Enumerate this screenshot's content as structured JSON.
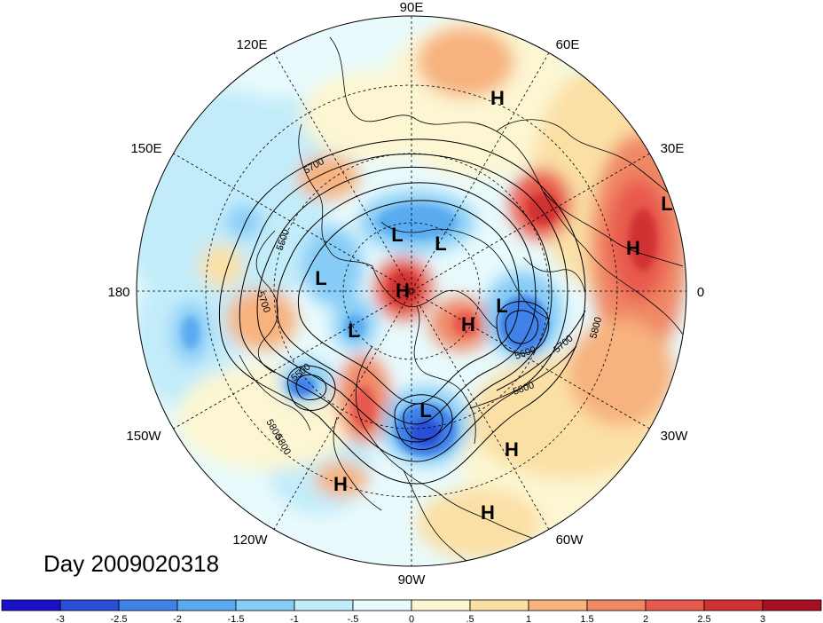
{
  "map": {
    "projection": "polar-stereographic",
    "hemisphere": "north",
    "longitude_labels": [
      "90E",
      "60E",
      "30E",
      "0",
      "30W",
      "60W",
      "90W",
      "120W",
      "150W",
      "180",
      "150E",
      "120E"
    ],
    "contour_labels": [
      "5500",
      "5500",
      "5600",
      "5700",
      "5700",
      "5700",
      "5800",
      "5800",
      "5800",
      "5800"
    ],
    "highs_lows": [
      {
        "type": "H",
        "label": "H"
      },
      {
        "type": "H",
        "label": "H"
      },
      {
        "type": "H",
        "label": "H"
      },
      {
        "type": "H",
        "label": "H"
      },
      {
        "type": "H",
        "label": "H"
      },
      {
        "type": "H",
        "label": "H"
      },
      {
        "type": "H",
        "label": "H"
      },
      {
        "type": "L",
        "label": "L"
      },
      {
        "type": "L",
        "label": "L"
      },
      {
        "type": "L",
        "label": "L"
      },
      {
        "type": "L",
        "label": "L"
      },
      {
        "type": "L",
        "label": "L"
      },
      {
        "type": "L",
        "label": "L"
      },
      {
        "type": "L",
        "label": "L"
      }
    ]
  },
  "day_label": "Day 2009020318",
  "colorbar": {
    "labels": [
      "-3",
      "-2.5",
      "-2",
      "-1.5",
      "-1",
      "-.5",
      "0",
      ".5",
      "1",
      "1.5",
      "2",
      "2.5",
      "3"
    ],
    "colors": [
      "#1a12c8",
      "#2a4ed8",
      "#3f82e8",
      "#5aaaf0",
      "#86ccf6",
      "#c2ecfa",
      "#e8fafc",
      "#fcf6d2",
      "#fbe0a6",
      "#f7b27e",
      "#f08866",
      "#e85a4e",
      "#d03232",
      "#a80f22"
    ]
  }
}
